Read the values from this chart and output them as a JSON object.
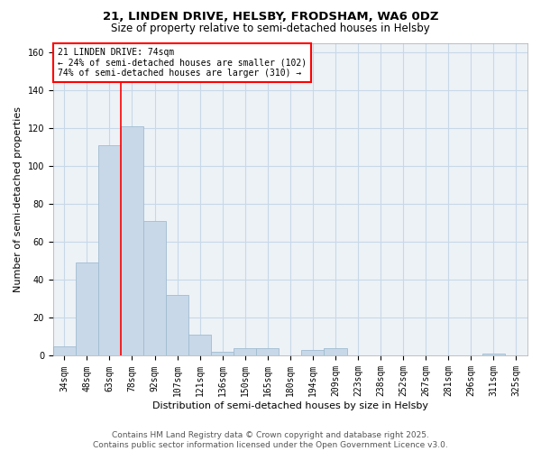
{
  "title_line1": "21, LINDEN DRIVE, HELSBY, FRODSHAM, WA6 0DZ",
  "title_line2": "Size of property relative to semi-detached houses in Helsby",
  "xlabel": "Distribution of semi-detached houses by size in Helsby",
  "ylabel": "Number of semi-detached properties",
  "categories": [
    "34sqm",
    "48sqm",
    "63sqm",
    "78sqm",
    "92sqm",
    "107sqm",
    "121sqm",
    "136sqm",
    "150sqm",
    "165sqm",
    "180sqm",
    "194sqm",
    "209sqm",
    "223sqm",
    "238sqm",
    "252sqm",
    "267sqm",
    "281sqm",
    "296sqm",
    "311sqm",
    "325sqm"
  ],
  "values": [
    5,
    49,
    111,
    121,
    71,
    32,
    11,
    2,
    4,
    4,
    0,
    3,
    4,
    0,
    0,
    0,
    0,
    0,
    0,
    1,
    0
  ],
  "bar_color": "#c8d8e8",
  "bar_edge_color": "#a0bcd0",
  "grid_color": "#c8d8e8",
  "vline_color": "red",
  "vline_index": 2.5,
  "annotation_box_text": "21 LINDEN DRIVE: 74sqm\n← 24% of semi-detached houses are smaller (102)\n74% of semi-detached houses are larger (310) →",
  "annotation_box_color": "red",
  "ylim": [
    0,
    165
  ],
  "yticks": [
    0,
    20,
    40,
    60,
    80,
    100,
    120,
    140,
    160
  ],
  "background_color": "#edf2f7",
  "footer_line1": "Contains HM Land Registry data © Crown copyright and database right 2025.",
  "footer_line2": "Contains public sector information licensed under the Open Government Licence v3.0.",
  "title_fontsize": 9.5,
  "subtitle_fontsize": 8.5,
  "xlabel_fontsize": 8,
  "ylabel_fontsize": 8,
  "tick_fontsize": 7,
  "annotation_fontsize": 7,
  "footer_fontsize": 6.5
}
